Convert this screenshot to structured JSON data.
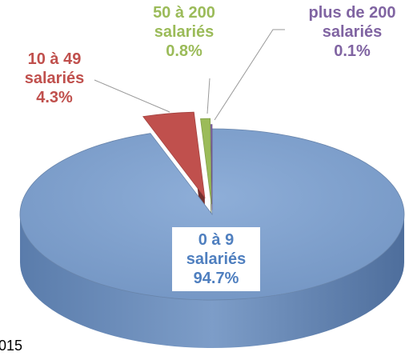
{
  "chart_data": {
    "type": "pie",
    "categories": [
      "0 à 9 salariés",
      "10 à 49 salariés",
      "50 à 200 salariés",
      "plus de 200 salariés"
    ],
    "values": [
      94.7,
      4.3,
      0.8,
      0.1
    ],
    "value_labels": [
      "94.7%",
      "4.3%",
      "0.8%",
      "0.1%"
    ],
    "colors": [
      "#7b9cc9",
      "#c0504d",
      "#9bbb59",
      "#8064a2"
    ],
    "footnote": "015"
  }
}
